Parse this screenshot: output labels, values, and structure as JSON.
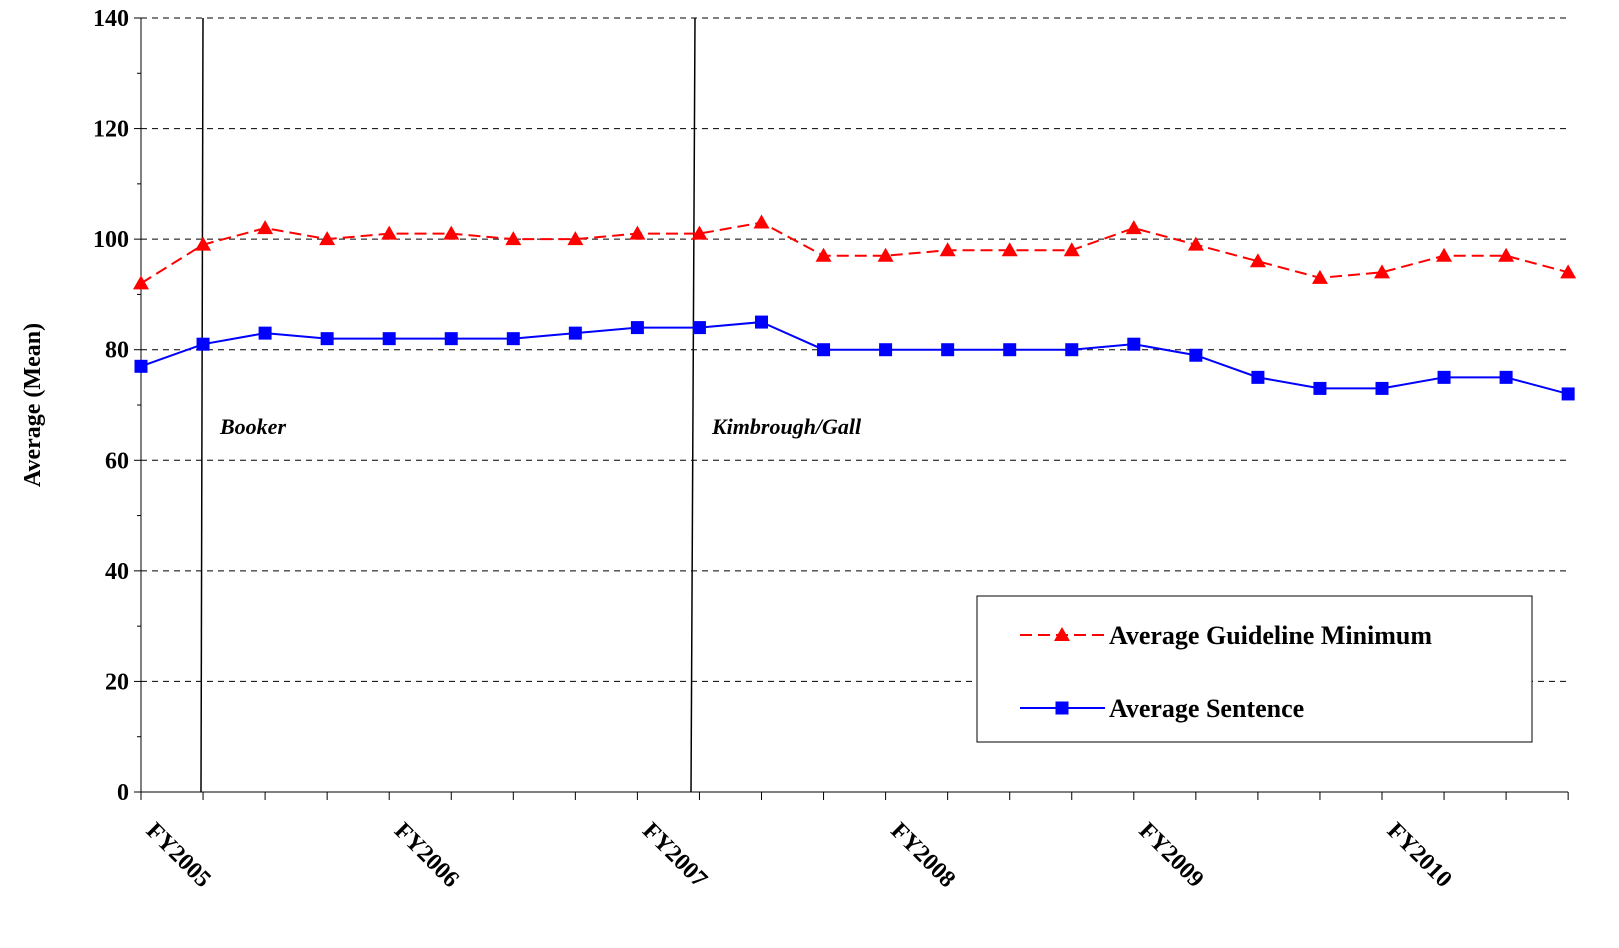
{
  "chart_data": {
    "type": "line",
    "y_label": "Average (Mean)",
    "categories": [
      "FY2005",
      null,
      null,
      null,
      "FY2006",
      null,
      null,
      null,
      "FY2007",
      null,
      null,
      null,
      "FY2008",
      null,
      null,
      null,
      "FY2009",
      null,
      null,
      null,
      "FY2010",
      null,
      null,
      null
    ],
    "series": [
      {
        "name": "Average Guideline Minimum",
        "color": "#ff0000",
        "values": [
          92,
          99,
          102,
          100,
          101,
          101,
          100,
          100,
          101,
          101,
          103,
          97,
          97,
          98,
          98,
          98,
          102,
          99,
          96,
          93,
          94,
          97,
          97,
          94
        ]
      },
      {
        "name": "Average Sentence",
        "color": "#0000ff",
        "values": [
          77,
          81,
          83,
          82,
          82,
          82,
          82,
          83,
          84,
          84,
          85,
          80,
          80,
          80,
          80,
          80,
          81,
          79,
          75,
          73,
          73,
          75,
          75,
          72
        ]
      }
    ],
    "annotations": [
      "Booker",
      "Kimbrough/Gall"
    ],
    "ylim": [
      0,
      140
    ],
    "yticks": [
      0,
      20,
      40,
      60,
      80,
      100,
      120,
      140
    ],
    "grid": true,
    "legend": "lower right"
  }
}
